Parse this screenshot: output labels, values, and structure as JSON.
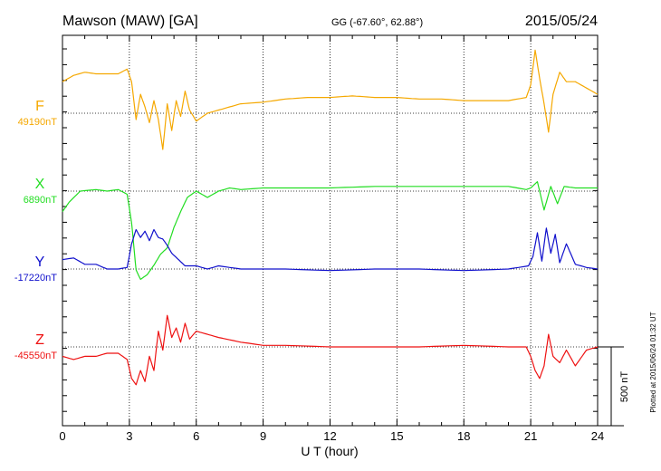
{
  "header": {
    "station": "Mawson (MAW)  [GA]",
    "coords": "GG (-67.60°,  62.88°)",
    "date": "2015/05/24"
  },
  "footer_note": "Plotted at 2015/06/24 01:32 UT",
  "chart_data": {
    "type": "line",
    "title": "Mawson (MAW)  [GA]",
    "subtitle": "GG (-67.60°,  62.88°)",
    "date": "2015/05/24",
    "xlabel": "U T (hour)",
    "xlim": [
      0,
      24
    ],
    "xticks": [
      0,
      3,
      6,
      9,
      12,
      15,
      18,
      21,
      24
    ],
    "grid": "vertical dotted every 3 hours",
    "scale_bar": {
      "label": "500 nT",
      "value_nT": 500
    },
    "units": "nT",
    "series": [
      {
        "name": "F",
        "baseline_label": "49190nT",
        "baseline_nT": 49190,
        "color": "#f5a800",
        "x": [
          0,
          0.5,
          1,
          1.5,
          2,
          2.5,
          2.9,
          3.1,
          3.3,
          3.5,
          3.7,
          3.9,
          4.1,
          4.3,
          4.5,
          4.7,
          4.9,
          5.1,
          5.3,
          5.5,
          5.7,
          6,
          6.5,
          7,
          7.5,
          8,
          9,
          10,
          11,
          12,
          13,
          14,
          15,
          16,
          17,
          18,
          19,
          20,
          20.8,
          21,
          21.2,
          21.4,
          21.6,
          21.8,
          22,
          22.3,
          22.6,
          23,
          23.5,
          24
        ],
        "values": [
          200,
          240,
          260,
          250,
          250,
          250,
          280,
          200,
          -40,
          120,
          40,
          -60,
          80,
          -40,
          -230,
          60,
          -110,
          80,
          -20,
          140,
          20,
          -50,
          0,
          20,
          40,
          60,
          70,
          90,
          100,
          100,
          110,
          100,
          100,
          90,
          90,
          80,
          80,
          80,
          100,
          180,
          400,
          220,
          60,
          -120,
          120,
          260,
          200,
          200,
          160,
          120
        ]
      },
      {
        "name": "X",
        "baseline_label": "6890nT",
        "baseline_nT": 6890,
        "color": "#22dd22",
        "x": [
          0,
          0.3,
          0.8,
          1.5,
          2,
          2.5,
          2.9,
          3.1,
          3.3,
          3.5,
          3.8,
          4.1,
          4.4,
          4.7,
          5,
          5.3,
          5.6,
          6,
          6.5,
          7,
          7.5,
          8,
          9,
          10,
          12,
          14,
          16,
          18,
          20,
          20.8,
          21,
          21.3,
          21.6,
          21.9,
          22.2,
          22.5,
          23,
          24
        ],
        "values": [
          -130,
          -70,
          0,
          10,
          0,
          10,
          -20,
          -200,
          -500,
          -560,
          -530,
          -470,
          -400,
          -360,
          -230,
          -130,
          -40,
          0,
          -40,
          0,
          20,
          10,
          20,
          20,
          20,
          30,
          30,
          30,
          30,
          10,
          20,
          60,
          -120,
          30,
          -80,
          30,
          20,
          20
        ]
      },
      {
        "name": "Y",
        "baseline_label": "-17220nT",
        "baseline_nT": -17220,
        "color": "#1010cc",
        "x": [
          0,
          0.5,
          1,
          1.5,
          2,
          2.5,
          2.9,
          3.1,
          3.3,
          3.5,
          3.7,
          3.9,
          4.1,
          4.3,
          4.5,
          4.7,
          4.9,
          5.2,
          5.5,
          6,
          6.5,
          7,
          8,
          9,
          10,
          12,
          14,
          16,
          18,
          20,
          20.9,
          21.1,
          21.3,
          21.5,
          21.7,
          21.9,
          22.1,
          22.3,
          22.6,
          23,
          23.5,
          24
        ],
        "values": [
          60,
          70,
          30,
          30,
          0,
          0,
          10,
          160,
          250,
          200,
          240,
          180,
          250,
          200,
          190,
          150,
          100,
          60,
          20,
          20,
          0,
          20,
          0,
          0,
          0,
          -10,
          0,
          0,
          -10,
          0,
          20,
          80,
          230,
          50,
          260,
          100,
          220,
          40,
          160,
          30,
          10,
          0
        ]
      },
      {
        "name": "Z",
        "baseline_label": "-45550nT",
        "baseline_nT": -45550,
        "color": "#ee1111",
        "x": [
          0,
          0.5,
          1,
          1.5,
          2,
          2.5,
          2.9,
          3.1,
          3.3,
          3.5,
          3.7,
          3.9,
          4.1,
          4.3,
          4.5,
          4.7,
          4.9,
          5.1,
          5.3,
          5.5,
          5.7,
          6,
          6.5,
          7,
          8,
          9,
          10,
          12,
          14,
          16,
          18,
          20,
          20.8,
          21,
          21.2,
          21.4,
          21.6,
          21.8,
          22,
          22.3,
          22.6,
          23,
          23.5,
          24
        ],
        "values": [
          -60,
          -80,
          -60,
          -60,
          -40,
          -40,
          -80,
          -200,
          -240,
          -150,
          -220,
          -60,
          -150,
          100,
          -20,
          200,
          60,
          120,
          30,
          150,
          50,
          100,
          80,
          60,
          30,
          10,
          10,
          0,
          0,
          0,
          10,
          0,
          0,
          -60,
          -150,
          -200,
          -120,
          80,
          -60,
          -100,
          -20,
          -120,
          -20,
          0
        ]
      }
    ]
  }
}
